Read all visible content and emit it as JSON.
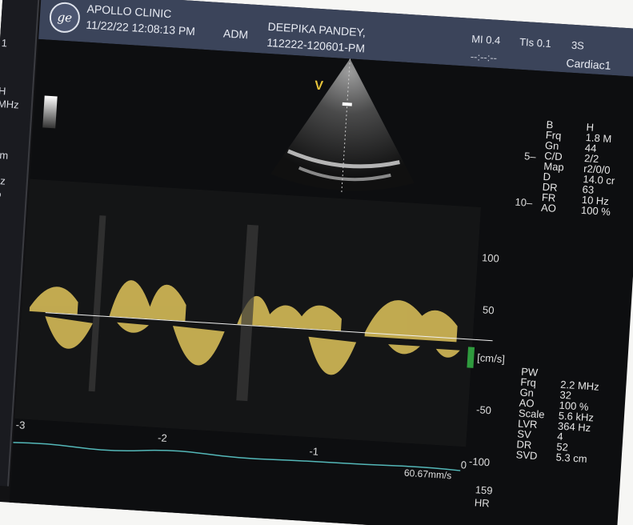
{
  "header": {
    "clinic": "APOLLO CLINIC",
    "datetime": "11/22/22 12:08:13 PM",
    "operator": "ADM",
    "patient_name": "DEEPIKA PANDEY,",
    "patient_id": "112222-120601-PM",
    "mi": "MI 0.4",
    "tis": "TIs 0.1",
    "probe": "3S",
    "preset": "Cardiac1",
    "dash": "--:--:--"
  },
  "leftcol": {
    "lines": [
      "1",
      "H",
      "MHz",
      "cm",
      "Hz",
      "%"
    ]
  },
  "bmode_params": {
    "mode": "B",
    "mode_value": "H",
    "rows": [
      {
        "k": "Frq",
        "v": "1.8 M"
      },
      {
        "k": "Gn",
        "v": "44"
      },
      {
        "k": "C/D",
        "v": "2/2"
      },
      {
        "k": "Map",
        "v": "r2/0/0"
      },
      {
        "k": "D",
        "v": "14.0 cr"
      },
      {
        "k": "DR",
        "v": "63"
      },
      {
        "k": "FR",
        "v": "10 Hz"
      },
      {
        "k": "AO",
        "v": "100 %"
      }
    ],
    "depth_marks": [
      "5–",
      "10–"
    ]
  },
  "pw_params": {
    "title": "PW",
    "rows": [
      {
        "k": "Frq",
        "v": "2.2 MHz"
      },
      {
        "k": "Gn",
        "v": "32"
      },
      {
        "k": "AO",
        "v": "100 %"
      },
      {
        "k": "Scale",
        "v": "5.6 kHz"
      },
      {
        "k": "LVR",
        "v": "364 Hz"
      },
      {
        "k": "SV",
        "v": "4"
      },
      {
        "k": "DR",
        "v": "52"
      },
      {
        "k": "SVD",
        "v": "5.3 cm"
      }
    ]
  },
  "velocity_scale": {
    "labels": [
      "100",
      "50",
      "[cm/s]",
      "-50",
      "-100"
    ]
  },
  "time_axis": {
    "labels": [
      "-3",
      "-2",
      "-1",
      "0"
    ],
    "sweep": "60.67mm/s"
  },
  "hr": {
    "value": "159",
    "label": "HR"
  },
  "sector_marker": "V",
  "colors": {
    "header_bg": "#3b445a",
    "spectrum": "#e0c45b",
    "green_marker": "#2f9b3e",
    "ecg": "#54b8b9"
  }
}
